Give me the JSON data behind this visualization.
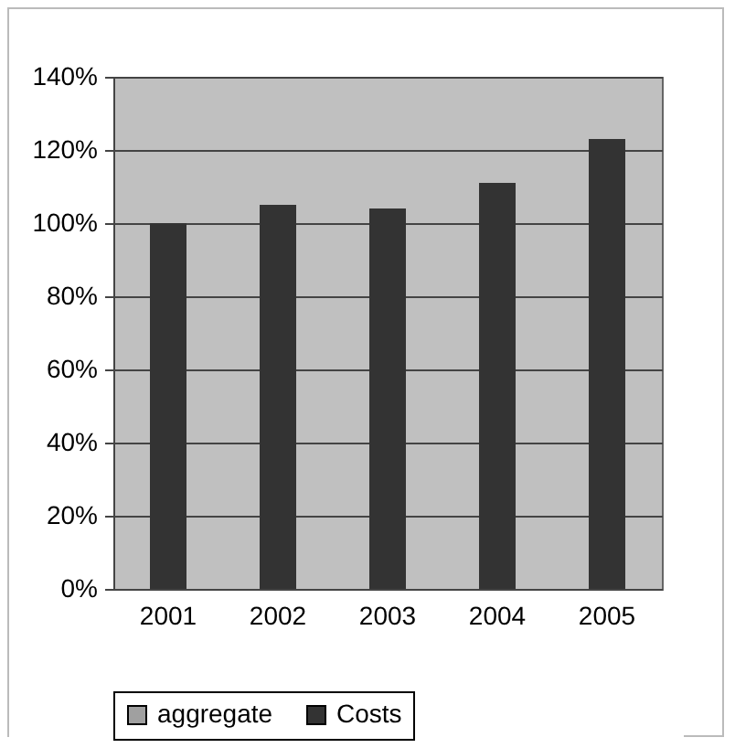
{
  "chart_data": {
    "type": "bar",
    "categories": [
      "2001",
      "2002",
      "2003",
      "2004",
      "2005"
    ],
    "series": [
      {
        "name": "aggregate",
        "color": "#a0a0a0",
        "values": [
          null,
          null,
          null,
          null,
          null
        ]
      },
      {
        "name": "Costs",
        "color": "#333333",
        "values": [
          100,
          105,
          104,
          111,
          123
        ]
      }
    ],
    "ylim": [
      0,
      140
    ],
    "yticks": [
      {
        "value": 0,
        "label": "0%"
      },
      {
        "value": 20,
        "label": "20%"
      },
      {
        "value": 40,
        "label": "40%"
      },
      {
        "value": 60,
        "label": "60%"
      },
      {
        "value": 80,
        "label": "80%"
      },
      {
        "value": 100,
        "label": "100%"
      },
      {
        "value": 120,
        "label": "120%"
      },
      {
        "value": 140,
        "label": "140%"
      }
    ],
    "grid": "y",
    "legend": "bottom"
  }
}
